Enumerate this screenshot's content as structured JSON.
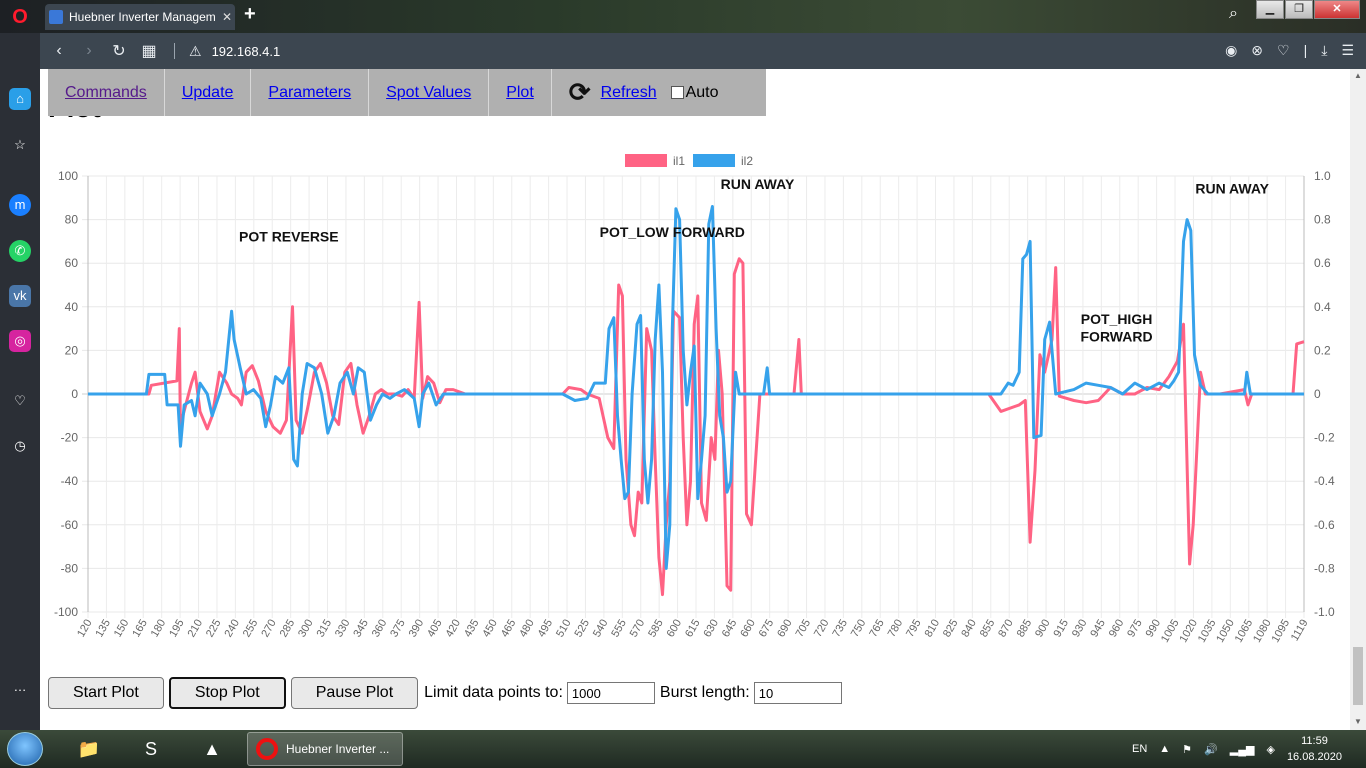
{
  "browser": {
    "tab_title": "Huebner Inverter Managem",
    "url": "192.168.4.1"
  },
  "page": {
    "heading_partial": "Plot",
    "menu": [
      {
        "label": "Commands"
      },
      {
        "label": "Update"
      },
      {
        "label": "Parameters"
      },
      {
        "label": "Spot Values"
      },
      {
        "label": "Plot"
      },
      {
        "label": "Refresh"
      }
    ],
    "auto_label": "Auto",
    "controls": {
      "start": "Start Plot",
      "stop": "Stop Plot",
      "pause": "Pause Plot",
      "limit_label": "Limit data points to:",
      "limit_value": "1000",
      "burst_label": "Burst length:",
      "burst_value": "10"
    }
  },
  "chart_data": {
    "type": "line",
    "legend": [
      {
        "name": "il1",
        "color": "#ff6384"
      },
      {
        "name": "il2",
        "color": "#36a2eb"
      }
    ],
    "legend_position": "top",
    "grid": true,
    "y_left_ticks": [
      "100",
      "80",
      "60",
      "40",
      "20",
      "0",
      "-20",
      "-40",
      "-60",
      "-80",
      "-100"
    ],
    "y_right_ticks": [
      "1.0",
      "0.8",
      "0.6",
      "0.4",
      "0.2",
      "0",
      "-0.2",
      "-0.4",
      "-0.6",
      "-0.8",
      "-1.0"
    ],
    "ylim": [
      -100,
      100
    ],
    "y2lim": [
      -1.0,
      1.0
    ],
    "x_ticks": [
      "120",
      "135",
      "150",
      "165",
      "180",
      "195",
      "210",
      "225",
      "240",
      "255",
      "270",
      "285",
      "300",
      "315",
      "330",
      "345",
      "360",
      "375",
      "390",
      "405",
      "420",
      "435",
      "450",
      "465",
      "480",
      "495",
      "510",
      "525",
      "540",
      "555",
      "570",
      "585",
      "600",
      "615",
      "630",
      "645",
      "660",
      "675",
      "690",
      "705",
      "720",
      "735",
      "750",
      "765",
      "780",
      "795",
      "810",
      "825",
      "840",
      "855",
      "870",
      "885",
      "900",
      "915",
      "930",
      "945",
      "960",
      "975",
      "990",
      "1005",
      "1020",
      "1035",
      "1050",
      "1065",
      "1080",
      "1095",
      "1119"
    ],
    "xlim": [
      120,
      1119
    ],
    "annotations": [
      {
        "text": "POT REVERSE",
        "x": 285,
        "y": 70
      },
      {
        "text": "POT_LOW FORWARD",
        "x": 600,
        "y": 72
      },
      {
        "text": "RUN AWAY",
        "x": 670,
        "y": 94
      },
      {
        "text": "POT_HIGH",
        "x": 965,
        "y": 32
      },
      {
        "text": "FORWARD",
        "x": 965,
        "y": 24
      },
      {
        "text": "RUN AWAY",
        "x": 1060,
        "y": 92
      }
    ],
    "series": [
      {
        "name": "il1",
        "color": "#ff6384",
        "points": [
          [
            120,
            0
          ],
          [
            170,
            0
          ],
          [
            172,
            4
          ],
          [
            193,
            6
          ],
          [
            195,
            30
          ],
          [
            196,
            -20
          ],
          [
            198,
            -10
          ],
          [
            205,
            5
          ],
          [
            208,
            10
          ],
          [
            212,
            -8
          ],
          [
            218,
            -16
          ],
          [
            222,
            -10
          ],
          [
            228,
            10
          ],
          [
            234,
            5
          ],
          [
            238,
            0
          ],
          [
            243,
            -2
          ],
          [
            246,
            -5
          ],
          [
            250,
            10
          ],
          [
            255,
            13
          ],
          [
            260,
            6
          ],
          [
            266,
            -8
          ],
          [
            272,
            -15
          ],
          [
            278,
            -18
          ],
          [
            283,
            -12
          ],
          [
            288,
            40
          ],
          [
            291,
            -12
          ],
          [
            296,
            -18
          ],
          [
            301,
            -5
          ],
          [
            306,
            10
          ],
          [
            311,
            14
          ],
          [
            316,
            5
          ],
          [
            321,
            -10
          ],
          [
            326,
            -14
          ],
          [
            331,
            10
          ],
          [
            336,
            14
          ],
          [
            341,
            -5
          ],
          [
            346,
            -18
          ],
          [
            351,
            -10
          ],
          [
            356,
            0
          ],
          [
            361,
            2
          ],
          [
            366,
            0
          ],
          [
            372,
            0
          ],
          [
            378,
            -1
          ],
          [
            383,
            2
          ],
          [
            388,
            -2
          ],
          [
            392,
            42
          ],
          [
            395,
            -2
          ],
          [
            399,
            8
          ],
          [
            404,
            5
          ],
          [
            409,
            -4
          ],
          [
            414,
            2
          ],
          [
            420,
            2
          ],
          [
            430,
            0
          ],
          [
            500,
            0
          ],
          [
            510,
            0
          ],
          [
            515,
            3
          ],
          [
            525,
            2
          ],
          [
            530,
            0
          ],
          [
            540,
            -2
          ],
          [
            547,
            -20
          ],
          [
            552,
            -25
          ],
          [
            556,
            50
          ],
          [
            559,
            45
          ],
          [
            562,
            -30
          ],
          [
            566,
            -60
          ],
          [
            569,
            -65
          ],
          [
            572,
            -45
          ],
          [
            575,
            -50
          ],
          [
            579,
            30
          ],
          [
            583,
            20
          ],
          [
            586,
            -30
          ],
          [
            589,
            -75
          ],
          [
            592,
            -92
          ],
          [
            595,
            -60
          ],
          [
            598,
            -40
          ],
          [
            601,
            38
          ],
          [
            606,
            35
          ],
          [
            609,
            -20
          ],
          [
            612,
            -60
          ],
          [
            615,
            -40
          ],
          [
            618,
            32
          ],
          [
            621,
            45
          ],
          [
            624,
            -50
          ],
          [
            628,
            -58
          ],
          [
            632,
            -20
          ],
          [
            635,
            -30
          ],
          [
            638,
            20
          ],
          [
            641,
            0
          ],
          [
            645,
            -88
          ],
          [
            648,
            -90
          ],
          [
            651,
            55
          ],
          [
            655,
            62
          ],
          [
            658,
            60
          ],
          [
            661,
            -55
          ],
          [
            665,
            -60
          ],
          [
            672,
            0
          ],
          [
            700,
            0
          ],
          [
            704,
            25
          ],
          [
            706,
            0
          ],
          [
            860,
            0
          ],
          [
            870,
            -8
          ],
          [
            885,
            -5
          ],
          [
            890,
            -3
          ],
          [
            894,
            -68
          ],
          [
            898,
            -35
          ],
          [
            902,
            18
          ],
          [
            906,
            10
          ],
          [
            912,
            25
          ],
          [
            915,
            58
          ],
          [
            918,
            -1
          ],
          [
            930,
            -3
          ],
          [
            940,
            -4
          ],
          [
            950,
            -3
          ],
          [
            960,
            3
          ],
          [
            970,
            0
          ],
          [
            980,
            0
          ],
          [
            990,
            3
          ],
          [
            1000,
            2
          ],
          [
            1008,
            8
          ],
          [
            1015,
            15
          ],
          [
            1020,
            32
          ],
          [
            1025,
            -78
          ],
          [
            1028,
            -60
          ],
          [
            1031,
            -25
          ],
          [
            1034,
            10
          ],
          [
            1038,
            0
          ],
          [
            1050,
            0
          ],
          [
            1070,
            2
          ],
          [
            1073,
            -5
          ],
          [
            1076,
            0
          ],
          [
            1110,
            0
          ],
          [
            1113,
            23
          ],
          [
            1119,
            24
          ]
        ]
      },
      {
        "name": "il2",
        "color": "#36a2eb",
        "points": [
          [
            120,
            0
          ],
          [
            168,
            0
          ],
          [
            170,
            9
          ],
          [
            183,
            9
          ],
          [
            185,
            -5
          ],
          [
            194,
            -5
          ],
          [
            196,
            -24
          ],
          [
            199,
            -5
          ],
          [
            205,
            -3
          ],
          [
            208,
            -10
          ],
          [
            212,
            5
          ],
          [
            218,
            0
          ],
          [
            222,
            -10
          ],
          [
            228,
            0
          ],
          [
            233,
            10
          ],
          [
            238,
            38
          ],
          [
            240,
            25
          ],
          [
            245,
            12
          ],
          [
            250,
            0
          ],
          [
            256,
            2
          ],
          [
            262,
            -2
          ],
          [
            266,
            -15
          ],
          [
            270,
            -5
          ],
          [
            274,
            8
          ],
          [
            280,
            5
          ],
          [
            285,
            12
          ],
          [
            289,
            -30
          ],
          [
            292,
            -33
          ],
          [
            296,
            0
          ],
          [
            300,
            14
          ],
          [
            306,
            12
          ],
          [
            312,
            0
          ],
          [
            317,
            -18
          ],
          [
            322,
            -10
          ],
          [
            327,
            5
          ],
          [
            333,
            10
          ],
          [
            338,
            0
          ],
          [
            342,
            12
          ],
          [
            347,
            10
          ],
          [
            352,
            -12
          ],
          [
            357,
            -5
          ],
          [
            362,
            0
          ],
          [
            368,
            -2
          ],
          [
            373,
            0
          ],
          [
            380,
            2
          ],
          [
            388,
            -2
          ],
          [
            392,
            -15
          ],
          [
            395,
            0
          ],
          [
            400,
            5
          ],
          [
            406,
            -5
          ],
          [
            412,
            0
          ],
          [
            420,
            0
          ],
          [
            500,
            0
          ],
          [
            510,
            0
          ],
          [
            520,
            -3
          ],
          [
            530,
            -2
          ],
          [
            536,
            5
          ],
          [
            545,
            5
          ],
          [
            548,
            30
          ],
          [
            552,
            35
          ],
          [
            555,
            -10
          ],
          [
            558,
            -30
          ],
          [
            561,
            -48
          ],
          [
            564,
            -45
          ],
          [
            567,
            0
          ],
          [
            571,
            32
          ],
          [
            574,
            36
          ],
          [
            577,
            -30
          ],
          [
            580,
            -50
          ],
          [
            583,
            -30
          ],
          [
            586,
            25
          ],
          [
            589,
            50
          ],
          [
            592,
            10
          ],
          [
            595,
            -80
          ],
          [
            598,
            -60
          ],
          [
            600,
            30
          ],
          [
            603,
            85
          ],
          [
            606,
            80
          ],
          [
            609,
            20
          ],
          [
            612,
            -5
          ],
          [
            615,
            10
          ],
          [
            618,
            22
          ],
          [
            621,
            -48
          ],
          [
            624,
            -30
          ],
          [
            627,
            -10
          ],
          [
            630,
            78
          ],
          [
            633,
            86
          ],
          [
            636,
            30
          ],
          [
            639,
            -10
          ],
          [
            642,
            -20
          ],
          [
            645,
            -45
          ],
          [
            648,
            -40
          ],
          [
            652,
            10
          ],
          [
            655,
            0
          ],
          [
            675,
            0
          ],
          [
            678,
            12
          ],
          [
            680,
            0
          ],
          [
            860,
            0
          ],
          [
            870,
            0
          ],
          [
            876,
            5
          ],
          [
            880,
            4
          ],
          [
            885,
            10
          ],
          [
            888,
            62
          ],
          [
            891,
            64
          ],
          [
            894,
            70
          ],
          [
            897,
            -20
          ],
          [
            903,
            -19
          ],
          [
            906,
            25
          ],
          [
            910,
            33
          ],
          [
            915,
            0
          ],
          [
            930,
            2
          ],
          [
            940,
            5
          ],
          [
            950,
            4
          ],
          [
            960,
            3
          ],
          [
            970,
            0
          ],
          [
            980,
            5
          ],
          [
            990,
            2
          ],
          [
            1000,
            5
          ],
          [
            1008,
            3
          ],
          [
            1012,
            6
          ],
          [
            1016,
            10
          ],
          [
            1020,
            70
          ],
          [
            1023,
            80
          ],
          [
            1026,
            75
          ],
          [
            1029,
            18
          ],
          [
            1034,
            4
          ],
          [
            1040,
            0
          ],
          [
            1070,
            0
          ],
          [
            1072,
            10
          ],
          [
            1075,
            0
          ],
          [
            1119,
            0
          ]
        ]
      }
    ]
  }
}
